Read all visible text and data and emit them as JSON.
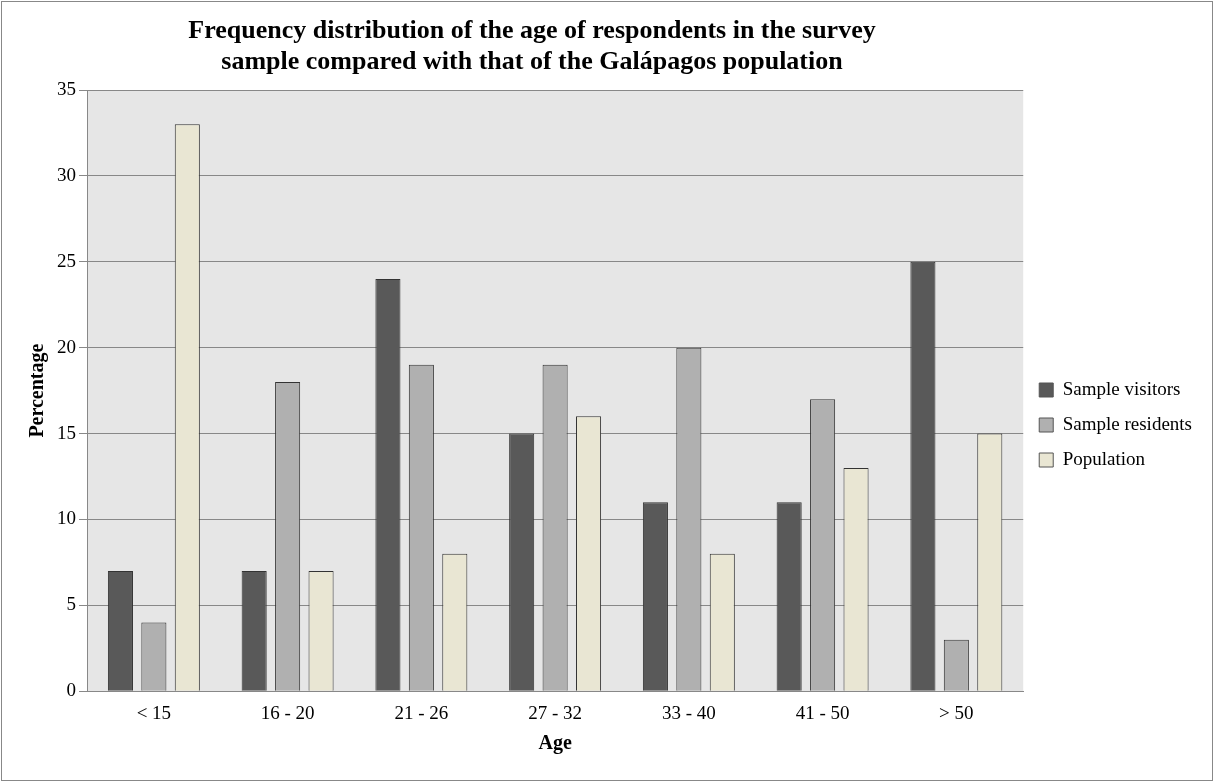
{
  "chart_data": {
    "type": "bar",
    "title": "Frequency distribution of the age of respondents in the survey sample compared with that of the Galápagos population",
    "xlabel": "Age",
    "ylabel": "Percentage",
    "categories": [
      "< 15",
      "16 - 20",
      "21 - 26",
      "27 - 32",
      "33 - 40",
      "41 - 50",
      "> 50"
    ],
    "series": [
      {
        "name": "Sample visitors",
        "color": "#595959",
        "values": [
          7,
          7,
          24,
          15,
          11,
          11,
          25
        ]
      },
      {
        "name": "Sample residents",
        "color": "#b0b0b0",
        "values": [
          4,
          18,
          19,
          19,
          20,
          17,
          3
        ]
      },
      {
        "name": "Population",
        "color": "#e9e6d3",
        "values": [
          33,
          7,
          8,
          16,
          8,
          13,
          15
        ]
      }
    ],
    "ylim": [
      0,
      35
    ],
    "yticks": [
      0,
      5,
      10,
      15,
      20,
      25,
      30,
      35
    ],
    "grid": "y",
    "legend": "right"
  }
}
